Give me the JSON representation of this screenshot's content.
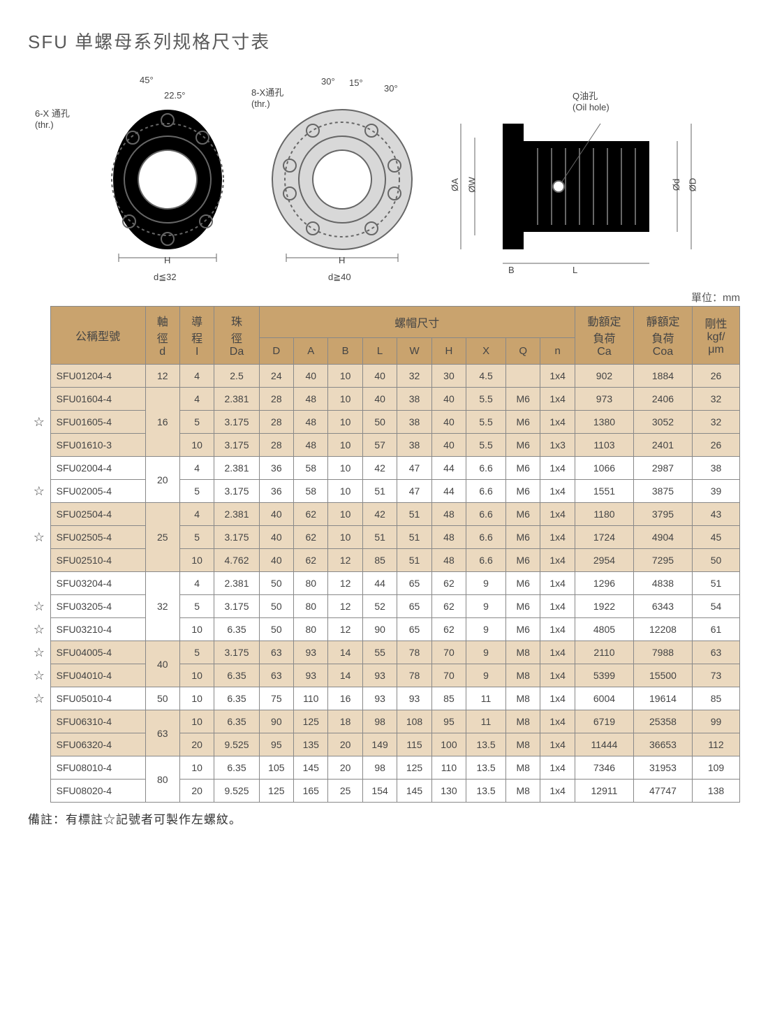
{
  "title": "SFU 单螺母系列规格尺寸表",
  "unit": "單位：mm",
  "note": "備註：有標註☆記號者可製作左螺紋。",
  "diagram_labels": {
    "thr6": "6-X 通孔\n(thr.)",
    "thr8": "8-X通孔\n(thr.)",
    "a45": "45°",
    "a225": "22.5°",
    "a30a": "30°",
    "a15": "15°",
    "a30b": "30°",
    "h": "H",
    "d32": "d≦32",
    "d40": "d≧40",
    "oil": "Q油孔\n(Oil hole)",
    "oa": "ØA",
    "ow": "ØW",
    "od": "Ød",
    "oD": "ØD",
    "B": "B",
    "L": "L"
  },
  "head": {
    "model": "公稱型號",
    "d": [
      "軸",
      "徑",
      "d"
    ],
    "I": [
      "導",
      "程",
      "I"
    ],
    "Da": [
      "珠",
      "徑",
      "Da"
    ],
    "nut": "螺帽尺寸",
    "cols": [
      "D",
      "A",
      "B",
      "L",
      "W",
      "H",
      "X",
      "Q",
      "n"
    ],
    "Ca": [
      "動額定",
      "負荷",
      "Ca"
    ],
    "Coa": [
      "靜額定",
      "負荷",
      "Coa"
    ],
    "kgf": [
      "剛性",
      "kgf/",
      "μm"
    ]
  },
  "groups": [
    {
      "band": "a",
      "d": "12",
      "rows": [
        {
          "star": "",
          "m": "SFU01204-4",
          "I": "4",
          "Da": "2.5",
          "D": "24",
          "A": "40",
          "B": "10",
          "L": "40",
          "W": "32",
          "H": "30",
          "X": "4.5",
          "Q": "",
          "n": "1x4",
          "Ca": "902",
          "Coa": "1884",
          "K": "26"
        }
      ]
    },
    {
      "band": "a",
      "d": "16",
      "rows": [
        {
          "star": "",
          "m": "SFU01604-4",
          "I": "4",
          "Da": "2.381",
          "D": "28",
          "A": "48",
          "B": "10",
          "L": "40",
          "W": "38",
          "H": "40",
          "X": "5.5",
          "Q": "M6",
          "n": "1x4",
          "Ca": "973",
          "Coa": "2406",
          "K": "32"
        },
        {
          "star": "☆",
          "m": "SFU01605-4",
          "I": "5",
          "Da": "3.175",
          "D": "28",
          "A": "48",
          "B": "10",
          "L": "50",
          "W": "38",
          "H": "40",
          "X": "5.5",
          "Q": "M6",
          "n": "1x4",
          "Ca": "1380",
          "Coa": "3052",
          "K": "32"
        },
        {
          "star": "",
          "m": "SFU01610-3",
          "I": "10",
          "Da": "3.175",
          "D": "28",
          "A": "48",
          "B": "10",
          "L": "57",
          "W": "38",
          "H": "40",
          "X": "5.5",
          "Q": "M6",
          "n": "1x3",
          "Ca": "1103",
          "Coa": "2401",
          "K": "26"
        }
      ]
    },
    {
      "band": "b",
      "d": "20",
      "rows": [
        {
          "star": "",
          "m": "SFU02004-4",
          "I": "4",
          "Da": "2.381",
          "D": "36",
          "A": "58",
          "B": "10",
          "L": "42",
          "W": "47",
          "H": "44",
          "X": "6.6",
          "Q": "M6",
          "n": "1x4",
          "Ca": "1066",
          "Coa": "2987",
          "K": "38"
        },
        {
          "star": "☆",
          "m": "SFU02005-4",
          "I": "5",
          "Da": "3.175",
          "D": "36",
          "A": "58",
          "B": "10",
          "L": "51",
          "W": "47",
          "H": "44",
          "X": "6.6",
          "Q": "M6",
          "n": "1x4",
          "Ca": "1551",
          "Coa": "3875",
          "K": "39"
        }
      ]
    },
    {
      "band": "a",
      "d": "25",
      "rows": [
        {
          "star": "",
          "m": "SFU02504-4",
          "I": "4",
          "Da": "2.381",
          "D": "40",
          "A": "62",
          "B": "10",
          "L": "42",
          "W": "51",
          "H": "48",
          "X": "6.6",
          "Q": "M6",
          "n": "1x4",
          "Ca": "1180",
          "Coa": "3795",
          "K": "43"
        },
        {
          "star": "☆",
          "m": "SFU02505-4",
          "I": "5",
          "Da": "3.175",
          "D": "40",
          "A": "62",
          "B": "10",
          "L": "51",
          "W": "51",
          "H": "48",
          "X": "6.6",
          "Q": "M6",
          "n": "1x4",
          "Ca": "1724",
          "Coa": "4904",
          "K": "45"
        },
        {
          "star": "",
          "m": "SFU02510-4",
          "I": "10",
          "Da": "4.762",
          "D": "40",
          "A": "62",
          "B": "12",
          "L": "85",
          "W": "51",
          "H": "48",
          "X": "6.6",
          "Q": "M6",
          "n": "1x4",
          "Ca": "2954",
          "Coa": "7295",
          "K": "50"
        }
      ]
    },
    {
      "band": "b",
      "d": "32",
      "rows": [
        {
          "star": "",
          "m": "SFU03204-4",
          "I": "4",
          "Da": "2.381",
          "D": "50",
          "A": "80",
          "B": "12",
          "L": "44",
          "W": "65",
          "H": "62",
          "X": "9",
          "Q": "M6",
          "n": "1x4",
          "Ca": "1296",
          "Coa": "4838",
          "K": "51"
        },
        {
          "star": "☆",
          "m": "SFU03205-4",
          "I": "5",
          "Da": "3.175",
          "D": "50",
          "A": "80",
          "B": "12",
          "L": "52",
          "W": "65",
          "H": "62",
          "X": "9",
          "Q": "M6",
          "n": "1x4",
          "Ca": "1922",
          "Coa": "6343",
          "K": "54"
        },
        {
          "star": "☆",
          "m": "SFU03210-4",
          "I": "10",
          "Da": "6.35",
          "D": "50",
          "A": "80",
          "B": "12",
          "L": "90",
          "W": "65",
          "H": "62",
          "X": "9",
          "Q": "M6",
          "n": "1x4",
          "Ca": "4805",
          "Coa": "12208",
          "K": "61"
        }
      ]
    },
    {
      "band": "a",
      "d": "40",
      "rows": [
        {
          "star": "☆",
          "m": "SFU04005-4",
          "I": "5",
          "Da": "3.175",
          "D": "63",
          "A": "93",
          "B": "14",
          "L": "55",
          "W": "78",
          "H": "70",
          "X": "9",
          "Q": "M8",
          "n": "1x4",
          "Ca": "2110",
          "Coa": "7988",
          "K": "63"
        },
        {
          "star": "☆",
          "m": "SFU04010-4",
          "I": "10",
          "Da": "6.35",
          "D": "63",
          "A": "93",
          "B": "14",
          "L": "93",
          "W": "78",
          "H": "70",
          "X": "9",
          "Q": "M8",
          "n": "1x4",
          "Ca": "5399",
          "Coa": "15500",
          "K": "73"
        }
      ]
    },
    {
      "band": "b",
      "d": "50",
      "rows": [
        {
          "star": "☆",
          "m": "SFU05010-4",
          "I": "10",
          "Da": "6.35",
          "D": "75",
          "A": "110",
          "B": "16",
          "L": "93",
          "W": "93",
          "H": "85",
          "X": "11",
          "Q": "M8",
          "n": "1x4",
          "Ca": "6004",
          "Coa": "19614",
          "K": "85"
        }
      ]
    },
    {
      "band": "a",
      "d": "63",
      "rows": [
        {
          "star": "",
          "m": "SFU06310-4",
          "I": "10",
          "Da": "6.35",
          "D": "90",
          "A": "125",
          "B": "18",
          "L": "98",
          "W": "108",
          "H": "95",
          "X": "11",
          "Q": "M8",
          "n": "1x4",
          "Ca": "6719",
          "Coa": "25358",
          "K": "99"
        },
        {
          "star": "",
          "m": "SFU06320-4",
          "I": "20",
          "Da": "9.525",
          "D": "95",
          "A": "135",
          "B": "20",
          "L": "149",
          "W": "115",
          "H": "100",
          "X": "13.5",
          "Q": "M8",
          "n": "1x4",
          "Ca": "11444",
          "Coa": "36653",
          "K": "112"
        }
      ]
    },
    {
      "band": "b",
      "d": "80",
      "rows": [
        {
          "star": "",
          "m": "SFU08010-4",
          "I": "10",
          "Da": "6.35",
          "D": "105",
          "A": "145",
          "B": "20",
          "L": "98",
          "W": "125",
          "H": "110",
          "X": "13.5",
          "Q": "M8",
          "n": "1x4",
          "Ca": "7346",
          "Coa": "31953",
          "K": "109"
        },
        {
          "star": "",
          "m": "SFU08020-4",
          "I": "20",
          "Da": "9.525",
          "D": "125",
          "A": "165",
          "B": "25",
          "L": "154",
          "W": "145",
          "H": "130",
          "X": "13.5",
          "Q": "M8",
          "n": "1x4",
          "Ca": "12911",
          "Coa": "47747",
          "K": "138"
        }
      ]
    }
  ],
  "colors": {
    "header": "#c9a36e",
    "bandA": "#ebd9bf",
    "bandB": "#ffffff",
    "border": "#888888"
  }
}
